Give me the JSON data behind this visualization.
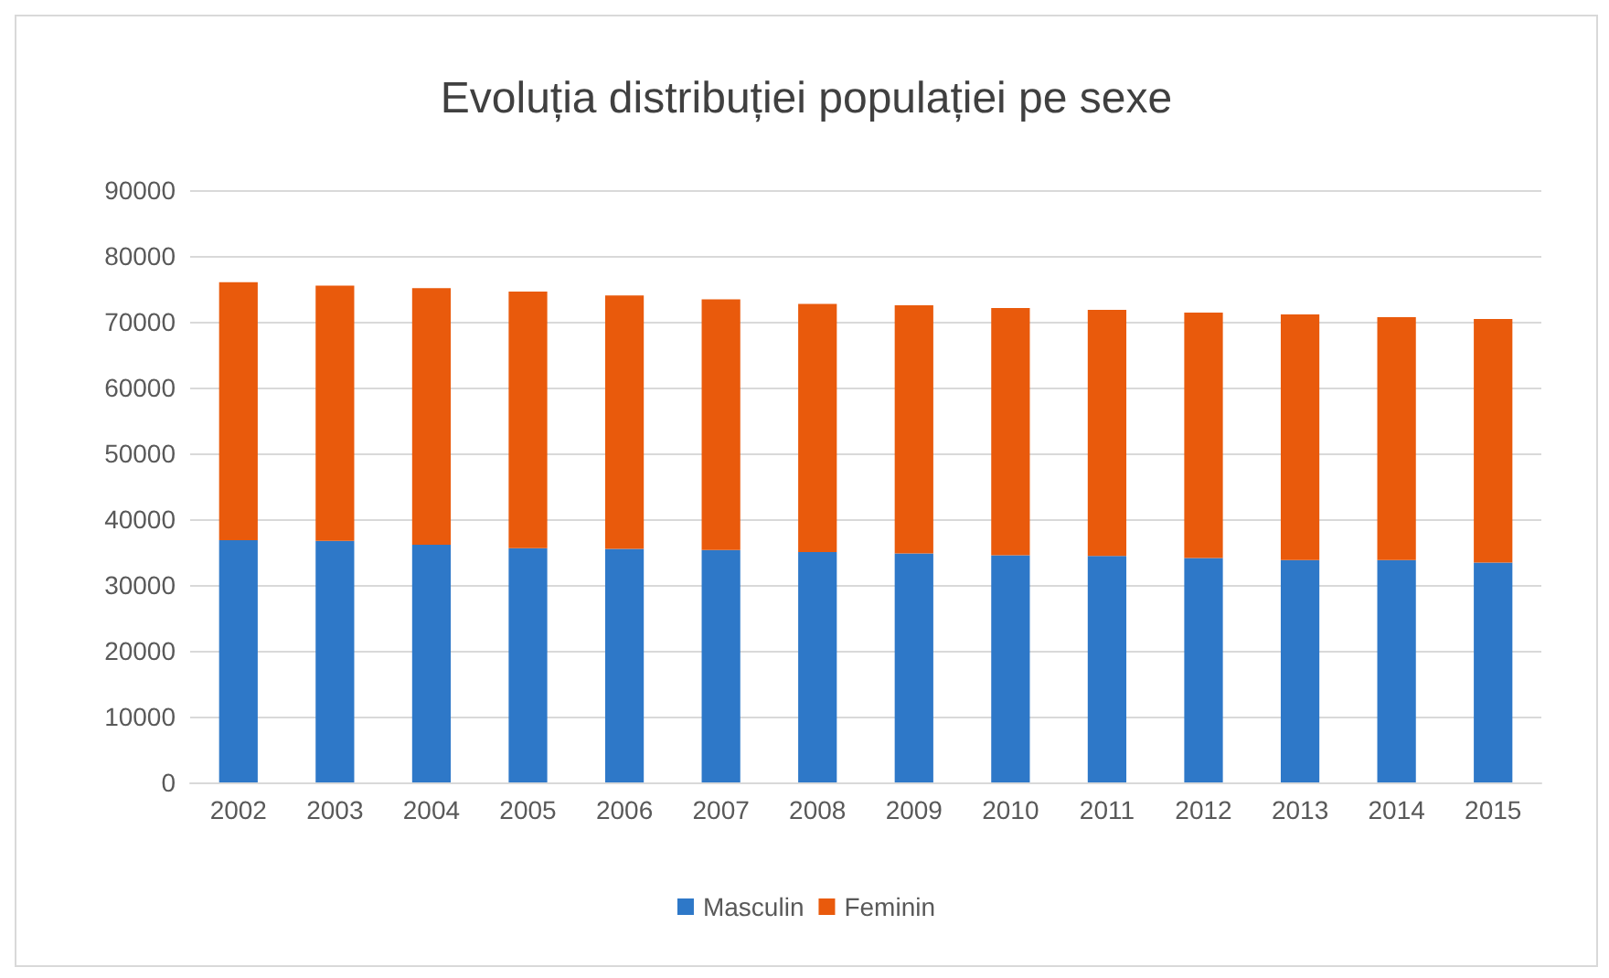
{
  "chart_data": {
    "type": "bar",
    "title": "Evoluția distribuției populației pe sexe",
    "stacked": true,
    "categories": [
      "2002",
      "2003",
      "2004",
      "2005",
      "2006",
      "2007",
      "2008",
      "2009",
      "2010",
      "2011",
      "2012",
      "2013",
      "2014",
      "2015"
    ],
    "series": [
      {
        "name": "Masculin",
        "color": "#2e78c8",
        "values": [
          36800,
          36700,
          36100,
          35600,
          35500,
          35300,
          35000,
          34800,
          34500,
          34400,
          34100,
          33800,
          33800,
          33400
        ]
      },
      {
        "name": "Feminin",
        "color": "#e95a0c",
        "values": [
          39200,
          38800,
          39000,
          39000,
          38500,
          38100,
          37700,
          37700,
          37600,
          37400,
          37300,
          37300,
          36900,
          37000
        ]
      }
    ],
    "ylim": [
      0,
      90000
    ],
    "yticks": [
      0,
      10000,
      20000,
      30000,
      40000,
      50000,
      60000,
      70000,
      80000,
      90000
    ],
    "grid": "y",
    "legend": "bottom"
  }
}
